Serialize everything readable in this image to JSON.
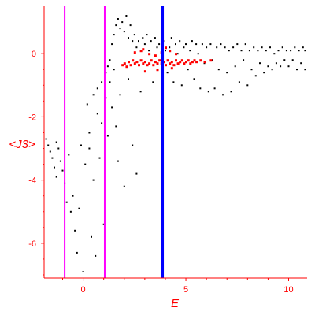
{
  "chart_data": {
    "type": "scatter",
    "title": "",
    "xlabel": "E",
    "ylabel": "<J3>",
    "xlim": [
      -1.9,
      10.9
    ],
    "ylim": [
      -7.1,
      1.5
    ],
    "xticks": [
      0,
      5,
      10
    ],
    "xtick_labels": [
      "0",
      "5",
      "10"
    ],
    "yticks": [
      0,
      -2,
      -4,
      -6
    ],
    "ytick_labels": [
      "0",
      "-2",
      "-4",
      "-6"
    ],
    "grid": false,
    "legend": "none",
    "colors": {
      "axes": "#ff0000",
      "points_black": "#000000",
      "points_red": "#ff0000",
      "magenta_lines": "#ff00ff",
      "blue_line": "#0000ff"
    },
    "vertical_lines": [
      {
        "x": -0.9,
        "color": "#ff00ff"
      },
      {
        "x": 1.05,
        "color": "#ff00ff"
      },
      {
        "x": 3.85,
        "color": "#0000ff"
      }
    ],
    "series": [
      {
        "color": "#000000",
        "points": [
          [
            -1.8,
            -2.7
          ],
          [
            -1.7,
            -2.9
          ],
          [
            -1.6,
            -3.1
          ],
          [
            -1.5,
            -3.3
          ],
          [
            -1.4,
            -3.6
          ],
          [
            -1.3,
            -2.8
          ],
          [
            -1.3,
            -3.9
          ],
          [
            -1.2,
            -3.0
          ],
          [
            -1.1,
            -3.4
          ],
          [
            -1.0,
            -3.7
          ],
          [
            -0.9,
            -4.1
          ],
          [
            -0.8,
            -4.7
          ],
          [
            -0.7,
            -3.2
          ],
          [
            -0.6,
            -5.0
          ],
          [
            -0.5,
            -4.5
          ],
          [
            -0.4,
            -5.6
          ],
          [
            -0.3,
            -6.3
          ],
          [
            -0.2,
            -4.9
          ],
          [
            -0.1,
            -2.9
          ],
          [
            0.0,
            -6.9
          ],
          [
            0.1,
            -3.5
          ],
          [
            0.2,
            -1.6
          ],
          [
            0.3,
            -2.5
          ],
          [
            0.3,
            -3.0
          ],
          [
            0.4,
            -5.8
          ],
          [
            0.5,
            -1.3
          ],
          [
            0.5,
            -4.0
          ],
          [
            0.6,
            -6.4
          ],
          [
            0.7,
            -1.1
          ],
          [
            0.7,
            -1.9
          ],
          [
            0.8,
            -3.3
          ],
          [
            0.9,
            -0.9
          ],
          [
            0.9,
            -2.2
          ],
          [
            1.0,
            -5.4
          ],
          [
            1.1,
            -0.6
          ],
          [
            1.1,
            -1.4
          ],
          [
            1.2,
            -0.4
          ],
          [
            1.2,
            -2.6
          ],
          [
            1.3,
            -0.2
          ],
          [
            1.3,
            -0.9
          ],
          [
            1.4,
            0.3
          ],
          [
            1.4,
            -1.7
          ],
          [
            1.5,
            0.6
          ],
          [
            1.5,
            -0.5
          ],
          [
            1.6,
            0.9
          ],
          [
            1.6,
            -2.3
          ],
          [
            1.7,
            1.1
          ],
          [
            1.7,
            -3.4
          ],
          [
            1.8,
            0.8
          ],
          [
            1.8,
            -1.3
          ],
          [
            1.9,
            1.0
          ],
          [
            2.0,
            0.7
          ],
          [
            2.0,
            -4.2
          ],
          [
            2.1,
            1.2
          ],
          [
            2.2,
            0.5
          ],
          [
            2.2,
            -0.8
          ],
          [
            2.3,
            0.9
          ],
          [
            2.4,
            0.4
          ],
          [
            2.4,
            -2.9
          ],
          [
            2.5,
            0.6
          ],
          [
            2.6,
            -3.8
          ],
          [
            2.6,
            0.2
          ],
          [
            2.7,
            0.4
          ],
          [
            2.8,
            -1.2
          ],
          [
            2.9,
            0.5
          ],
          [
            3.0,
            0.3
          ],
          [
            3.1,
            0.6
          ],
          [
            3.2,
            0.1
          ],
          [
            3.3,
            0.4
          ],
          [
            3.4,
            -0.9
          ],
          [
            3.5,
            0.5
          ],
          [
            3.6,
            0.2
          ],
          [
            3.7,
            0.3
          ],
          [
            3.9,
            0.4
          ],
          [
            4.0,
            0.1
          ],
          [
            4.1,
            -0.6
          ],
          [
            4.2,
            0.2
          ],
          [
            4.3,
            0.5
          ],
          [
            4.4,
            -0.9
          ],
          [
            4.5,
            0.3
          ],
          [
            4.6,
            0.0
          ],
          [
            4.7,
            0.4
          ],
          [
            4.8,
            -1.0
          ],
          [
            4.9,
            0.2
          ],
          [
            5.0,
            0.3
          ],
          [
            5.1,
            -0.5
          ],
          [
            5.2,
            0.1
          ],
          [
            5.3,
            0.4
          ],
          [
            5.4,
            -0.8
          ],
          [
            5.5,
            0.3
          ],
          [
            5.6,
            0.0
          ],
          [
            5.7,
            -1.1
          ],
          [
            5.8,
            0.3
          ],
          [
            5.9,
            -0.3
          ],
          [
            6.0,
            0.2
          ],
          [
            6.1,
            -1.2
          ],
          [
            6.2,
            0.3
          ],
          [
            6.3,
            -0.2
          ],
          [
            6.4,
            -1.1
          ],
          [
            6.5,
            0.2
          ],
          [
            6.6,
            -0.5
          ],
          [
            6.7,
            0.3
          ],
          [
            6.8,
            -1.3
          ],
          [
            6.9,
            0.2
          ],
          [
            7.0,
            -0.6
          ],
          [
            7.1,
            0.1
          ],
          [
            7.2,
            -1.2
          ],
          [
            7.3,
            0.2
          ],
          [
            7.4,
            -0.4
          ],
          [
            7.5,
            0.3
          ],
          [
            7.6,
            -0.9
          ],
          [
            7.7,
            0.1
          ],
          [
            7.8,
            -0.2
          ],
          [
            7.9,
            0.3
          ],
          [
            8.0,
            -1.0
          ],
          [
            8.1,
            0.1
          ],
          [
            8.2,
            -0.5
          ],
          [
            8.3,
            0.2
          ],
          [
            8.4,
            -0.7
          ],
          [
            8.5,
            0.1
          ],
          [
            8.6,
            -0.3
          ],
          [
            8.7,
            0.2
          ],
          [
            8.8,
            -0.6
          ],
          [
            8.9,
            0.1
          ],
          [
            9.0,
            -0.4
          ],
          [
            9.1,
            0.2
          ],
          [
            9.2,
            -0.5
          ],
          [
            9.3,
            0.0
          ],
          [
            9.4,
            -0.3
          ],
          [
            9.5,
            0.1
          ],
          [
            9.6,
            -0.4
          ],
          [
            9.7,
            0.2
          ],
          [
            9.8,
            -0.2
          ],
          [
            9.9,
            0.1
          ],
          [
            10.0,
            -0.4
          ],
          [
            10.1,
            0.1
          ],
          [
            10.2,
            -0.2
          ],
          [
            10.3,
            0.2
          ],
          [
            10.4,
            -0.5
          ],
          [
            10.5,
            0.1
          ],
          [
            10.6,
            -0.3
          ],
          [
            10.7,
            0.2
          ],
          [
            10.8,
            -0.5
          ],
          [
            10.8,
            0.1
          ]
        ]
      },
      {
        "color": "#ff0000",
        "points": [
          [
            1.9,
            -0.35
          ],
          [
            2.0,
            -0.3
          ],
          [
            2.1,
            -0.4
          ],
          [
            2.2,
            -0.25
          ],
          [
            2.3,
            -0.35
          ],
          [
            2.4,
            -0.2
          ],
          [
            2.5,
            -0.3
          ],
          [
            2.6,
            -0.25
          ],
          [
            2.7,
            -0.35
          ],
          [
            2.8,
            -0.2
          ],
          [
            2.9,
            -0.3
          ],
          [
            3.0,
            -0.25
          ],
          [
            3.1,
            -0.35
          ],
          [
            3.2,
            -0.3
          ],
          [
            3.3,
            -0.2
          ],
          [
            3.4,
            -0.35
          ],
          [
            3.5,
            -0.25
          ],
          [
            3.6,
            -0.3
          ],
          [
            3.7,
            -0.2
          ],
          [
            3.8,
            -0.3
          ],
          [
            3.9,
            -0.25
          ],
          [
            4.0,
            -0.35
          ],
          [
            4.1,
            -0.2
          ],
          [
            4.2,
            -0.3
          ],
          [
            4.3,
            -0.25
          ],
          [
            4.4,
            -0.35
          ],
          [
            4.5,
            -0.2
          ],
          [
            4.6,
            -0.3
          ],
          [
            4.7,
            -0.25
          ],
          [
            4.8,
            -0.2
          ],
          [
            4.9,
            -0.3
          ],
          [
            5.0,
            -0.25
          ],
          [
            5.1,
            -0.2
          ],
          [
            5.2,
            -0.3
          ],
          [
            5.3,
            -0.25
          ],
          [
            5.4,
            -0.2
          ],
          [
            5.5,
            -0.25
          ],
          [
            5.7,
            -0.2
          ],
          [
            5.9,
            -0.25
          ],
          [
            6.2,
            -0.2
          ],
          [
            2.5,
            0.05
          ],
          [
            2.8,
            0.1
          ],
          [
            3.2,
            0.0
          ],
          [
            3.5,
            -0.05
          ],
          [
            3.8,
            0.05
          ],
          [
            4.2,
            0.1
          ],
          [
            4.5,
            0.0
          ],
          [
            3.0,
            -0.55
          ],
          [
            3.6,
            -0.5
          ],
          [
            4.3,
            -0.45
          ],
          [
            2.9,
            0.15
          ],
          [
            4.0,
            0.2
          ]
        ]
      }
    ]
  }
}
